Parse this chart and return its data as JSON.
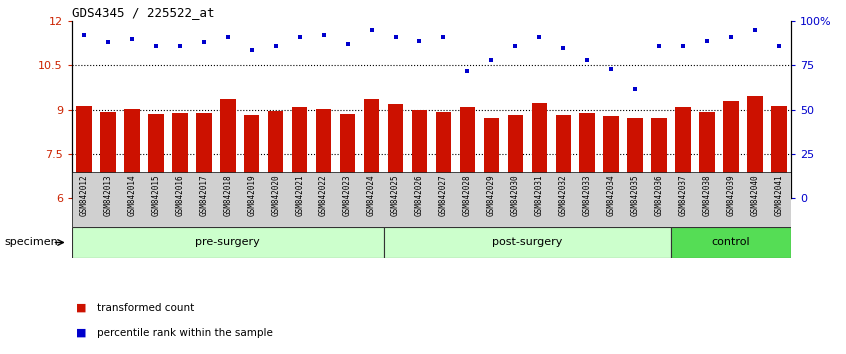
{
  "title": "GDS4345 / 225522_at",
  "samples": [
    "GSM842012",
    "GSM842013",
    "GSM842014",
    "GSM842015",
    "GSM842016",
    "GSM842017",
    "GSM842018",
    "GSM842019",
    "GSM842020",
    "GSM842021",
    "GSM842022",
    "GSM842023",
    "GSM842024",
    "GSM842025",
    "GSM842026",
    "GSM842027",
    "GSM842028",
    "GSM842029",
    "GSM842030",
    "GSM842031",
    "GSM842032",
    "GSM842033",
    "GSM842034",
    "GSM842035",
    "GSM842036",
    "GSM842037",
    "GSM842038",
    "GSM842039",
    "GSM842040",
    "GSM842041"
  ],
  "bar_values": [
    9.12,
    8.92,
    9.03,
    8.85,
    8.88,
    8.88,
    9.35,
    8.82,
    8.95,
    9.08,
    9.03,
    8.85,
    9.38,
    9.18,
    8.98,
    8.92,
    9.1,
    8.72,
    8.82,
    9.22,
    8.82,
    8.88,
    8.8,
    8.72,
    8.72,
    9.1,
    8.92,
    9.28,
    9.45,
    9.12
  ],
  "pct_raw": [
    92,
    88,
    90,
    86,
    86,
    88,
    91,
    84,
    86,
    91,
    92,
    87,
    95,
    91,
    89,
    91,
    72,
    78,
    86,
    91,
    85,
    78,
    73,
    62,
    86,
    86,
    89,
    91,
    95,
    86
  ],
  "groups": [
    {
      "name": "pre-surgery",
      "start": 0,
      "end": 13,
      "color": "#ccffcc"
    },
    {
      "name": "post-surgery",
      "start": 13,
      "end": 25,
      "color": "#ccffcc"
    },
    {
      "name": "control",
      "start": 25,
      "end": 30,
      "color": "#55dd55"
    }
  ],
  "ylim_left": [
    6,
    12
  ],
  "ylim_right": [
    0,
    100
  ],
  "yticks_left": [
    6,
    7.5,
    9,
    10.5,
    12
  ],
  "ytick_labels_left": [
    "6",
    "7.5",
    "9",
    "10.5",
    "12"
  ],
  "yticks_right": [
    0,
    25,
    50,
    75,
    100
  ],
  "ytick_labels_right": [
    "0",
    "25",
    "50",
    "75",
    "100%"
  ],
  "bar_color": "#cc1100",
  "dot_color": "#0000cc",
  "bar_bottom": 6.0,
  "background_color": "#ffffff",
  "legend_items": [
    {
      "label": "transformed count",
      "color": "#cc1100"
    },
    {
      "label": "percentile rank within the sample",
      "color": "#0000cc"
    }
  ],
  "specimen_label": "specimen",
  "dotted_lines": [
    7.5,
    9.0,
    10.5
  ],
  "xticklabel_bg": "#d0d0d0"
}
